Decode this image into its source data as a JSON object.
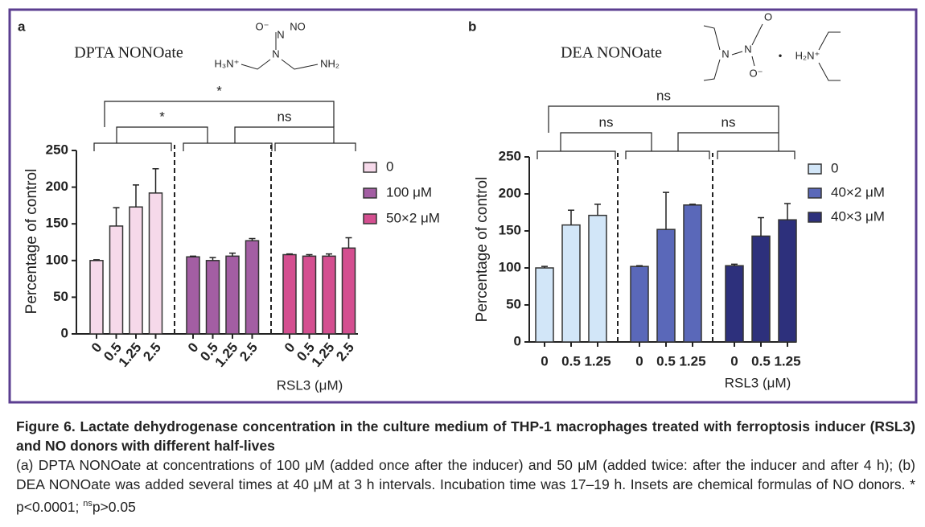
{
  "chart_data": [
    {
      "type": "bar",
      "panel_label": "a",
      "title": "DPTA NONOate",
      "formula_labels": [
        "O⁻",
        "N",
        "NO",
        "N",
        "H₃N⁺",
        "NH₂"
      ],
      "ylabel": "Percentage of control",
      "xlabel": "RSL3 (μM)",
      "categories": [
        "0",
        "0.5",
        "1.25",
        "2.5"
      ],
      "series": [
        {
          "name": "0",
          "color": "#f6d9ea",
          "values": [
            100,
            147,
            173,
            192
          ],
          "errors": [
            1,
            25,
            30,
            33
          ]
        },
        {
          "name": "100 μM",
          "color": "#a35ea3",
          "values": [
            105,
            100,
            106,
            127
          ],
          "errors": [
            1,
            4,
            4,
            3
          ]
        },
        {
          "name": "50×2 μM",
          "color": "#d44f90",
          "values": [
            108,
            106,
            106,
            117
          ],
          "errors": [
            1,
            2,
            3,
            14
          ]
        }
      ],
      "ylim": [
        0,
        250
      ],
      "yticks": [
        0,
        50,
        100,
        150,
        200,
        250
      ],
      "annotations": [
        "*",
        "*",
        "ns"
      ]
    },
    {
      "type": "bar",
      "panel_label": "b",
      "title": "DEA NONOate",
      "formula_labels": [
        "N",
        "N",
        "O",
        "O⁻",
        "•",
        "H₂N⁺"
      ],
      "ylabel": "Percentage of control",
      "xlabel": "RSL3 (μM)",
      "categories": [
        "0",
        "0.5",
        "1.25"
      ],
      "series": [
        {
          "name": "0",
          "color": "#d2e6f8",
          "values": [
            100,
            158,
            171
          ],
          "errors": [
            2,
            20,
            15
          ]
        },
        {
          "name": "40×2 μM",
          "color": "#5a68b9",
          "values": [
            102,
            152,
            185
          ],
          "errors": [
            1,
            50,
            1
          ]
        },
        {
          "name": "40×3 μM",
          "color": "#2d307c",
          "values": [
            103,
            143,
            165
          ],
          "errors": [
            2,
            25,
            22
          ]
        }
      ],
      "ylim": [
        0,
        250
      ],
      "yticks": [
        0,
        50,
        100,
        150,
        200,
        250
      ],
      "annotations": [
        "ns",
        "ns",
        "ns"
      ]
    }
  ],
  "caption": {
    "title": "Figure 6. Lactate dehydrogenase concentration in the culture medium of THP-1 macrophages treated with ferroptosis inducer (RSL3) and NO donors with different half-lives",
    "body": "(a) DPTA NONOate at concentrations of 100 μM (added once after the inducer) and 50 μM (added twice: after the inducer and after 4 h); (b) DEA NONOate was added several times at 40 μM at 3 h intervals. Incubation time was 17–19 h. Insets are chemical formulas of NO donors. * p<0.0001; ",
    "sup": "ns",
    "body_end": "p>0.05"
  }
}
